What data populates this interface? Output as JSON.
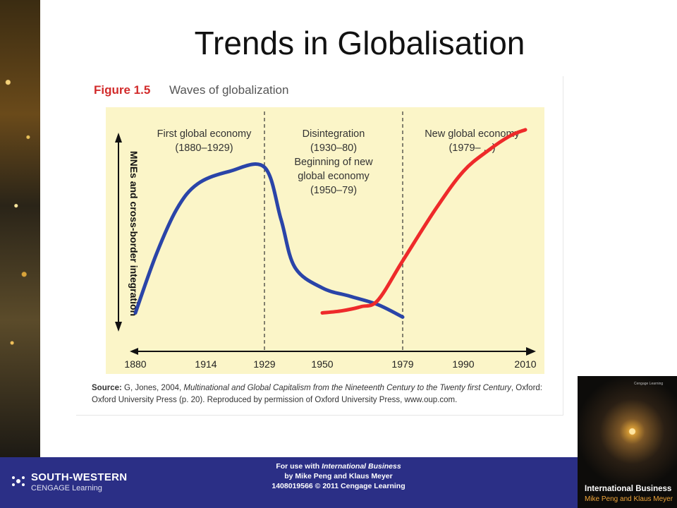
{
  "slide": {
    "title": "Trends in Globalisation"
  },
  "figure": {
    "label": "Figure 1.5",
    "title": "Waves of globalization"
  },
  "chart_data": {
    "type": "line",
    "ylabel": "MNEs and cross-border integration",
    "x_ticks": [
      "1880",
      "1914",
      "1929",
      "1950",
      "1979",
      "1990",
      "2010"
    ],
    "dividers": [
      "1929",
      "1979"
    ],
    "periods": [
      {
        "lines": [
          "First global economy",
          "(1880–1929)"
        ]
      },
      {
        "lines": [
          "Disintegration",
          "(1930–80)",
          "Beginning of new",
          "global economy",
          "(1950–79)"
        ]
      },
      {
        "lines": [
          "New global economy",
          "(1979– ...)"
        ]
      }
    ],
    "series": [
      {
        "color": "#2a44a8",
        "x": [
          1880,
          1890,
          1900,
          1910,
          1920,
          1929,
          1935,
          1940,
          1950,
          1960,
          1970,
          1979
        ],
        "y": [
          10,
          38,
          60,
          72,
          78,
          80,
          55,
          32,
          22,
          18,
          14,
          8
        ]
      },
      {
        "color": "#ee2a2a",
        "x": [
          1950,
          1957,
          1964,
          1970,
          1979,
          1985,
          1990,
          1998,
          2005,
          2010
        ],
        "y": [
          10,
          11,
          13,
          16,
          35,
          60,
          78,
          88,
          95,
          98
        ]
      }
    ],
    "ylim": [
      0,
      100
    ],
    "grid": false
  },
  "source": {
    "label": "Source:",
    "text_before": " G, Jones, 2004, ",
    "book_title": "Multinational and Global Capitalism from the Nineteenth Century to the Twenty first Century",
    "text_after": ", Oxford: Oxford University Press (p. 20). Reproduced by permission of Oxford University Press, www.oup.com."
  },
  "footer": {
    "use_prefix": "For use with ",
    "book": "International Business",
    "authors": "by Mike Peng and Klaus Meyer",
    "isbn_line": "1408019566 © 2011 Cengage Learning",
    "publisher_line1": "SOUTH-WESTERN",
    "publisher_line2": "CENGAGE Learning"
  },
  "cover": {
    "title": "International Business",
    "authors": "Mike Peng and Klaus Meyer",
    "tagline": "Cengage Learning"
  },
  "colors": {
    "footer_bg": "#2b2f86",
    "chart_bg": "#fbf5c8",
    "figure_label": "#d22b2b"
  }
}
